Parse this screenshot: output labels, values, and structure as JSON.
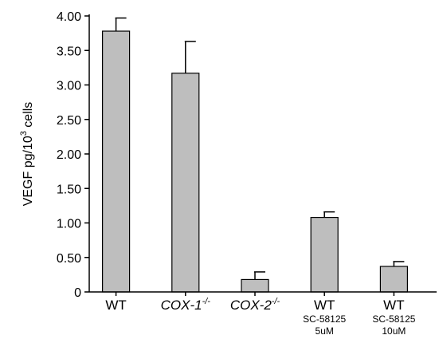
{
  "chart_data": {
    "type": "bar",
    "title": "",
    "xlabel": "",
    "ylabel_parts": {
      "prefix": "VEGF pg/10",
      "superscript": "3",
      "suffix": " cells"
    },
    "ylim": [
      0,
      4.0
    ],
    "yticks": [
      "0",
      "0.50",
      "1.00",
      "1.50",
      "2.00",
      "2.50",
      "3.00",
      "3.50",
      "4.00"
    ],
    "categories": [
      {
        "base": "WT",
        "sup": "",
        "italic": false,
        "sub1": "",
        "sub2": ""
      },
      {
        "base": "COX-1",
        "sup": "-/-",
        "italic": true,
        "sub1": "",
        "sub2": ""
      },
      {
        "base": "COX-2",
        "sup": "-/-",
        "italic": true,
        "sub1": "",
        "sub2": ""
      },
      {
        "base": "WT",
        "sup": "",
        "italic": false,
        "sub1": "SC-58125",
        "sub2": "5uM"
      },
      {
        "base": "WT",
        "sup": "",
        "italic": false,
        "sub1": "SC-58125",
        "sub2": "10uM"
      }
    ],
    "values": [
      3.78,
      3.17,
      0.18,
      1.08,
      0.37
    ],
    "errors": [
      0.19,
      0.46,
      0.11,
      0.08,
      0.07
    ],
    "bar_color": "#bebebe",
    "grid": false
  }
}
